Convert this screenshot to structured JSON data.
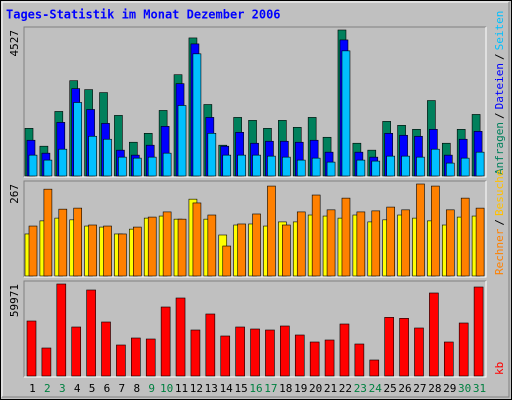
{
  "chart_data": {
    "type": "bar",
    "title": "Tages-Statistik im Monat Dezember 2006",
    "categories": [
      "1",
      "2",
      "3",
      "4",
      "5",
      "6",
      "7",
      "8",
      "9",
      "10",
      "11",
      "12",
      "13",
      "14",
      "15",
      "16",
      "17",
      "18",
      "19",
      "20",
      "21",
      "22",
      "23",
      "24",
      "25",
      "26",
      "27",
      "28",
      "29",
      "30",
      "31"
    ],
    "category_label_colors": [
      "#000000",
      "#008040",
      "#008040",
      "#000000",
      "#000000",
      "#000000",
      "#000000",
      "#000000",
      "#008040",
      "#008040",
      "#000000",
      "#000000",
      "#000000",
      "#000000",
      "#000000",
      "#008040",
      "#008040",
      "#000000",
      "#000000",
      "#000000",
      "#000000",
      "#000000",
      "#008040",
      "#008040",
      "#000000",
      "#000000",
      "#000000",
      "#000000",
      "#000000",
      "#008040",
      "#008040"
    ],
    "legend_separator": "/",
    "panels": [
      {
        "ylim": [
          0,
          4527
        ],
        "yticks": [
          4527
        ],
        "series": [
          {
            "name": "Anfragen",
            "color": "#00805c",
            "values": [
              1478,
              924,
              2002,
              2956,
              2679,
              2587,
              1879,
              1047,
              1324,
              2033,
              3141,
              4281,
              2217,
              955,
              1817,
              1725,
              1478,
              1725,
              1509,
              1817,
              1201,
              4527,
              1016,
              801,
              1694,
              1571,
              1447,
              2340,
              1016,
              1447,
              1909
            ]
          },
          {
            "name": "Dateien",
            "color": "#0000ff",
            "values": [
              1109,
              708,
              1663,
              2710,
              2063,
              1632,
              801,
              647,
              955,
              1540,
              2864,
              4096,
              1817,
              924,
              1355,
              1016,
              1078,
              1078,
              1047,
              1109,
              739,
              4219,
              739,
              585,
              1324,
              1263,
              1232,
              1447,
              647,
              1140,
              1386
            ]
          },
          {
            "name": "Seiten",
            "color": "#00c0ff",
            "values": [
              647,
              493,
              831,
              2279,
              1232,
              1140,
              585,
              554,
              585,
              708,
              2187,
              3788,
              1324,
              647,
              647,
              647,
              616,
              585,
              493,
              554,
              431,
              3880,
              493,
              462,
              616,
              616,
              585,
              831,
              400,
              554,
              739
            ]
          }
        ]
      },
      {
        "ylim": [
          0,
          267
        ],
        "yticks": [
          267
        ],
        "series": [
          {
            "name": "Rechner",
            "color": "#ffff00",
            "text_color": "#ff8000",
            "values": [
              122,
              160,
              168,
              163,
              145,
              142,
              122,
              136,
              168,
              174,
              165,
              223,
              165,
              119,
              148,
              151,
              145,
              157,
              157,
              177,
              174,
              168,
              177,
              157,
              163,
              177,
              168,
              160,
              148,
              171,
              174
            ]
          },
          {
            "name": "Besuche",
            "color": "#ff8000",
            "text_color": "#ffc000",
            "values": [
              145,
              252,
              194,
              197,
              148,
              145,
              122,
              142,
              171,
              186,
              165,
              212,
              177,
              87,
              151,
              180,
              261,
              148,
              186,
              235,
              192,
              226,
              186,
              189,
              200,
              192,
              267,
              261,
              192,
              226,
              197
            ]
          }
        ]
      },
      {
        "ylim": [
          0,
          59971
        ],
        "yticks": [
          59971
        ],
        "series": [
          {
            "name": "kb",
            "color": "#ff0000",
            "values": [
              35853,
              18252,
              59971,
              31941,
              56062,
              35201,
              20208,
              24771,
              24119,
              44979,
              50846,
              29986,
              40416,
              26075,
              31941,
              30638,
              29986,
              32593,
              26727,
              22163,
              23467,
              33897,
              20860,
              10430,
              38238,
              37586,
              31290,
              54107,
              22163,
              34549,
              58015
            ]
          }
        ]
      }
    ]
  }
}
